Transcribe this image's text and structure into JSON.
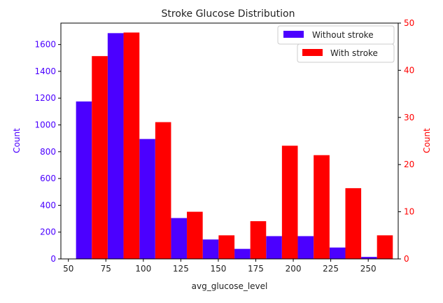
{
  "chart_data": {
    "type": "bar",
    "title": "Stroke Glucose Distribution",
    "xlabel": "avg_glucose_level",
    "ylabel_left": "Count",
    "ylabel_right": "Count",
    "xlim": [
      45,
      270
    ],
    "x_ticks": [
      50,
      75,
      100,
      125,
      150,
      175,
      200,
      225,
      250
    ],
    "ylim_left": [
      0,
      1760
    ],
    "y_ticks_left": [
      0,
      200,
      400,
      600,
      800,
      1000,
      1200,
      1400,
      1600
    ],
    "ylim_right": [
      0,
      50
    ],
    "y_ticks_right": [
      0,
      10,
      20,
      30,
      40,
      50
    ],
    "bin_edges": [
      55.1,
      76.2,
      97.4,
      118.5,
      139.6,
      160.8,
      181.9,
      203.0,
      224.2,
      245.3,
      266.4
    ],
    "legend_location": "top-right",
    "series": [
      {
        "name": "Without stroke",
        "axis": "left",
        "color": "#4b00ff",
        "values": [
          1175,
          1685,
          895,
          305,
          145,
          75,
          170,
          170,
          85,
          15
        ]
      },
      {
        "name": "With stroke",
        "axis": "right",
        "color": "#ff0000",
        "values": [
          43,
          48,
          29,
          10,
          5,
          8,
          24,
          22,
          15,
          5
        ]
      }
    ],
    "left_axis_color": "#4b00ff",
    "right_axis_color": "#ff0000"
  }
}
